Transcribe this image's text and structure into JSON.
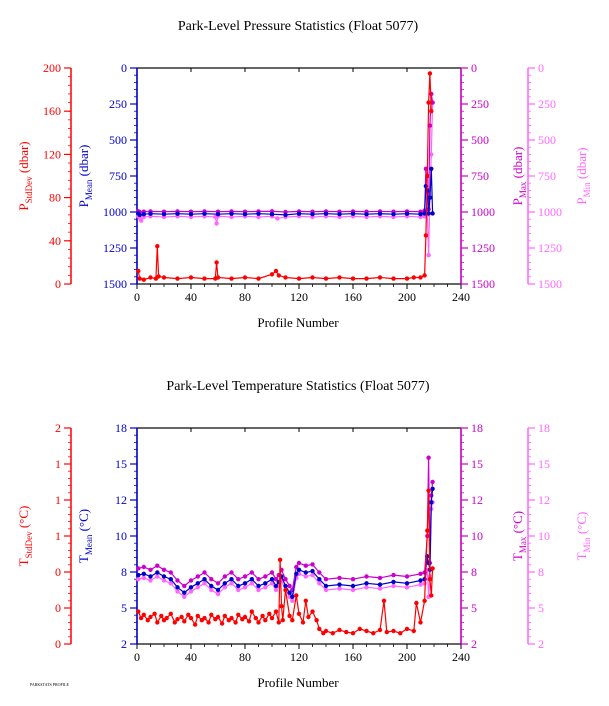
{
  "footer_text": "PARKSTATS PROFILE",
  "chart_data": [
    {
      "type": "line",
      "title": "Park-Level Pressure Statistics (Float 5077)",
      "xlabel": "Profile Number",
      "xlim": [
        0,
        240
      ],
      "x_ticks": [
        "0",
        "40",
        "80",
        "120",
        "160",
        "200",
        "240"
      ],
      "axes": [
        {
          "key": "sd",
          "label": "P",
          "sub": "StdDev",
          "unit": " (dbar)",
          "color": "#ff0000",
          "side": "left",
          "lim": [
            0,
            200
          ],
          "reversed": false,
          "ticks": [
            "0",
            "40",
            "80",
            "120",
            "160",
            "200"
          ]
        },
        {
          "key": "mean",
          "label": "P",
          "sub": "Mean",
          "unit": " (dbar)",
          "color": "#0000cc",
          "side": "left",
          "lim": [
            1500,
            0
          ],
          "reversed": true,
          "ticks": [
            "1500",
            "1250",
            "1000",
            "750",
            "500",
            "250",
            "0"
          ]
        },
        {
          "key": "max",
          "label": "P",
          "sub": "Max",
          "unit": " (dbar)",
          "color": "#cc00cc",
          "side": "right",
          "lim": [
            1500,
            0
          ],
          "reversed": true,
          "ticks": [
            "1500",
            "1250",
            "1000",
            "750",
            "500",
            "250",
            "0"
          ]
        },
        {
          "key": "min",
          "label": "P",
          "sub": "Min",
          "unit": " (dbar)",
          "color": "#ff66ff",
          "side": "right",
          "lim": [
            1500,
            0
          ],
          "reversed": true,
          "ticks": [
            "1500",
            "1250",
            "1000",
            "750",
            "500",
            "250",
            "0"
          ]
        }
      ],
      "series": [
        {
          "axis": "sd",
          "color": "#ff0000",
          "x": [
            1,
            2,
            5,
            10,
            14,
            15,
            16,
            20,
            30,
            40,
            50,
            58,
            59,
            60,
            70,
            80,
            90,
            100,
            103,
            105,
            110,
            120,
            130,
            140,
            150,
            160,
            170,
            180,
            190,
            200,
            205,
            210,
            213,
            214,
            215,
            216,
            217,
            218
          ],
          "y": [
            12,
            5,
            4,
            6,
            5,
            35,
            7,
            6,
            5,
            6,
            5,
            5,
            20,
            6,
            5,
            6,
            5,
            9,
            12,
            8,
            6,
            5,
            6,
            5,
            6,
            5,
            5,
            6,
            5,
            5,
            6,
            6,
            8,
            45,
            100,
            168,
            195,
            160
          ]
        },
        {
          "axis": "mean",
          "color": "#0000cc",
          "x": [
            1,
            2,
            5,
            10,
            20,
            30,
            40,
            50,
            60,
            70,
            80,
            90,
            100,
            110,
            120,
            130,
            140,
            150,
            160,
            170,
            180,
            190,
            200,
            210,
            213,
            214,
            215,
            216,
            217,
            218,
            219
          ],
          "y": [
            1010,
            1020,
            1015,
            1012,
            1015,
            1012,
            1015,
            1012,
            1015,
            1012,
            1015,
            1012,
            1015,
            1020,
            1012,
            1015,
            1012,
            1015,
            1012,
            1015,
            1012,
            1015,
            1012,
            1015,
            1010,
            820,
            850,
            1010,
            900,
            700,
            1010
          ]
        },
        {
          "axis": "max",
          "color": "#cc00cc",
          "x": [
            1,
            2,
            5,
            10,
            20,
            30,
            40,
            50,
            60,
            70,
            80,
            90,
            100,
            110,
            120,
            130,
            140,
            150,
            160,
            170,
            180,
            190,
            200,
            210,
            213,
            214,
            215,
            216,
            217,
            218,
            219
          ],
          "y": [
            995,
            1000,
            998,
            996,
            998,
            996,
            998,
            996,
            998,
            996,
            998,
            996,
            995,
            1000,
            996,
            998,
            996,
            998,
            996,
            998,
            996,
            998,
            996,
            998,
            990,
            700,
            860,
            980,
            400,
            180,
            240
          ]
        },
        {
          "axis": "min",
          "color": "#ff66ff",
          "x": [
            1,
            2,
            3,
            5,
            10,
            20,
            30,
            40,
            50,
            58,
            59,
            60,
            70,
            80,
            90,
            100,
            104,
            110,
            120,
            130,
            140,
            150,
            160,
            170,
            180,
            190,
            200,
            210,
            213,
            214,
            215,
            216,
            217,
            218,
            219
          ],
          "y": [
            1030,
            1040,
            1060,
            1035,
            1030,
            1035,
            1030,
            1035,
            1030,
            1035,
            1080,
            1030,
            1035,
            1030,
            1035,
            1030,
            1045,
            1035,
            1030,
            1035,
            1030,
            1035,
            1030,
            1035,
            1030,
            1035,
            1030,
            1035,
            1030,
            1000,
            1020,
            1300,
            900,
            600,
            240
          ]
        }
      ]
    },
    {
      "type": "line",
      "title": "Park-Level Temperature Statistics (Float 5077)",
      "xlabel": "Profile Number",
      "xlim": [
        0,
        240
      ],
      "x_ticks": [
        "0",
        "40",
        "80",
        "120",
        "160",
        "200",
        "240"
      ],
      "axes": [
        {
          "key": "sd",
          "label": "T",
          "sub": "StdDev",
          "unit": " (°C)",
          "color": "#ff0000",
          "side": "left",
          "lim": [
            0,
            2
          ],
          "reversed": false,
          "ticks": [
            "0",
            "0",
            "0",
            "1",
            "1",
            "1",
            "2"
          ]
        },
        {
          "key": "mean",
          "label": "T",
          "sub": "Mean",
          "unit": " (°C)",
          "color": "#0000cc",
          "side": "left",
          "lim": [
            2,
            18
          ],
          "reversed": false,
          "ticks": [
            "2",
            "5",
            "8",
            "10",
            "12",
            "15",
            "18"
          ]
        },
        {
          "key": "max",
          "label": "T",
          "sub": "Max",
          "unit": " (°C)",
          "color": "#cc00cc",
          "side": "right",
          "lim": [
            2,
            18
          ],
          "reversed": false,
          "ticks": [
            "2",
            "5",
            "8",
            "10",
            "12",
            "15",
            "18"
          ]
        },
        {
          "key": "min",
          "label": "T",
          "sub": "Min",
          "unit": " (°C)",
          "color": "#ff66ff",
          "side": "right",
          "lim": [
            2,
            18
          ],
          "reversed": false,
          "ticks": [
            "2",
            "5",
            "8",
            "10",
            "12",
            "15",
            "18"
          ]
        }
      ],
      "series": [
        {
          "axis": "sd",
          "color": "#ff0000",
          "x": [
            1,
            3,
            5,
            8,
            10,
            13,
            15,
            18,
            20,
            22,
            25,
            28,
            30,
            33,
            35,
            38,
            40,
            43,
            45,
            48,
            50,
            53,
            55,
            58,
            60,
            63,
            65,
            68,
            70,
            73,
            75,
            78,
            80,
            83,
            85,
            88,
            90,
            93,
            95,
            98,
            100,
            103,
            105,
            106,
            107,
            108,
            110,
            113,
            115,
            118,
            120,
            123,
            125,
            127,
            130,
            133,
            135,
            138,
            140,
            145,
            150,
            155,
            160,
            165,
            170,
            175,
            180,
            183,
            185,
            190,
            195,
            200,
            205,
            207,
            210,
            213,
            215,
            216,
            217,
            218,
            219
          ],
          "y": [
            0.3,
            0.24,
            0.27,
            0.22,
            0.25,
            0.28,
            0.2,
            0.26,
            0.22,
            0.24,
            0.28,
            0.2,
            0.23,
            0.25,
            0.21,
            0.27,
            0.24,
            0.18,
            0.26,
            0.22,
            0.24,
            0.2,
            0.27,
            0.23,
            0.25,
            0.19,
            0.26,
            0.22,
            0.24,
            0.2,
            0.27,
            0.23,
            0.25,
            0.21,
            0.3,
            0.24,
            0.2,
            0.26,
            0.22,
            0.28,
            0.24,
            0.3,
            0.2,
            0.78,
            0.35,
            0.22,
            0.5,
            0.26,
            0.22,
            0.45,
            0.28,
            0.2,
            0.4,
            0.25,
            0.3,
            0.22,
            0.14,
            0.1,
            0.12,
            0.1,
            0.13,
            0.11,
            0.1,
            0.14,
            0.12,
            0.1,
            0.13,
            0.4,
            0.11,
            0.12,
            0.1,
            0.14,
            0.12,
            0.38,
            0.2,
            0.4,
            1.05,
            1.42,
            0.6,
            0.45,
            0.7
          ]
        },
        {
          "axis": "mean",
          "color": "#0000cc",
          "x": [
            1,
            5,
            10,
            15,
            20,
            25,
            30,
            35,
            40,
            45,
            50,
            55,
            60,
            65,
            70,
            75,
            80,
            85,
            90,
            95,
            100,
            103,
            105,
            107,
            110,
            113,
            115,
            118,
            120,
            125,
            130,
            135,
            140,
            150,
            160,
            170,
            180,
            190,
            200,
            210,
            213,
            215,
            216,
            217,
            218,
            219
          ],
          "y": [
            7.1,
            7.2,
            7.0,
            7.3,
            7.0,
            6.8,
            6.2,
            5.8,
            6.2,
            6.5,
            6.8,
            6.3,
            6.0,
            6.5,
            6.8,
            6.3,
            6.5,
            6.8,
            6.3,
            6.5,
            6.8,
            6.3,
            6.6,
            7.0,
            6.3,
            5.8,
            5.5,
            7.2,
            7.5,
            7.3,
            7.4,
            6.8,
            6.3,
            6.4,
            6.3,
            6.5,
            6.4,
            6.6,
            6.5,
            6.7,
            6.8,
            8.5,
            8.0,
            7.5,
            12.5,
            13.5
          ]
        },
        {
          "axis": "max",
          "color": "#cc00cc",
          "x": [
            1,
            5,
            10,
            15,
            20,
            25,
            30,
            35,
            40,
            45,
            50,
            55,
            60,
            65,
            70,
            75,
            80,
            85,
            90,
            95,
            100,
            103,
            105,
            107,
            110,
            113,
            115,
            118,
            120,
            125,
            130,
            135,
            140,
            150,
            160,
            170,
            180,
            190,
            200,
            210,
            213,
            215,
            216,
            217,
            218,
            219
          ],
          "y": [
            7.6,
            7.7,
            7.5,
            7.8,
            7.5,
            7.3,
            6.7,
            6.3,
            6.7,
            7.0,
            7.3,
            6.8,
            6.5,
            7.0,
            7.3,
            6.8,
            7.0,
            7.3,
            6.8,
            7.0,
            7.3,
            6.8,
            7.1,
            7.5,
            6.8,
            6.3,
            6.0,
            7.7,
            8.0,
            7.8,
            7.9,
            7.3,
            6.8,
            6.9,
            6.8,
            7.0,
            6.9,
            7.1,
            7.0,
            7.2,
            7.3,
            10.0,
            15.8,
            8.0,
            13.0,
            14.0
          ]
        },
        {
          "axis": "min",
          "color": "#ff66ff",
          "x": [
            1,
            5,
            10,
            15,
            20,
            25,
            30,
            35,
            40,
            45,
            50,
            55,
            60,
            65,
            70,
            75,
            80,
            85,
            90,
            95,
            100,
            103,
            105,
            107,
            110,
            113,
            115,
            118,
            120,
            125,
            130,
            135,
            140,
            150,
            160,
            170,
            180,
            190,
            200,
            210,
            213,
            215,
            216,
            217,
            218,
            219
          ],
          "y": [
            6.8,
            6.9,
            6.7,
            7.0,
            6.7,
            6.5,
            5.9,
            5.5,
            5.9,
            6.2,
            6.5,
            6.0,
            5.7,
            6.2,
            6.5,
            6.0,
            6.2,
            6.5,
            6.0,
            6.2,
            6.5,
            6.0,
            6.3,
            6.7,
            6.0,
            5.5,
            5.2,
            6.9,
            7.2,
            7.0,
            7.1,
            6.5,
            6.0,
            6.1,
            6.0,
            6.2,
            6.1,
            6.3,
            6.2,
            6.4,
            6.5,
            7.5,
            5.5,
            7.0,
            12.0,
            12.5
          ]
        }
      ]
    }
  ]
}
